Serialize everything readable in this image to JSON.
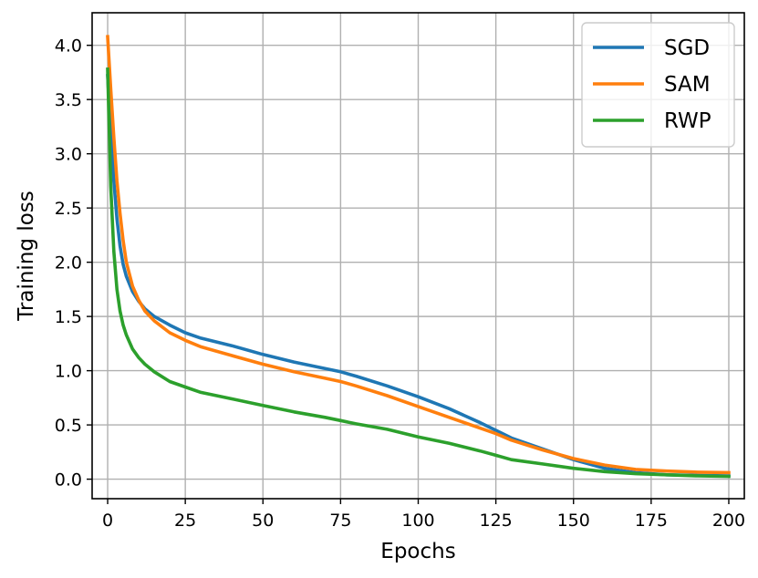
{
  "chart_data": {
    "type": "line",
    "title": "",
    "xlabel": "Epochs",
    "ylabel": "Training loss",
    "xlim": [
      -5,
      205
    ],
    "ylim": [
      -0.18,
      4.3
    ],
    "xticks": [
      0,
      25,
      50,
      75,
      100,
      125,
      150,
      175,
      200
    ],
    "xtick_labels": [
      "0",
      "25",
      "50",
      "75",
      "100",
      "125",
      "150",
      "175",
      "200"
    ],
    "yticks": [
      0.0,
      0.5,
      1.0,
      1.5,
      2.0,
      2.5,
      3.0,
      3.5,
      4.0
    ],
    "ytick_labels": [
      "0.0",
      "0.5",
      "1.0",
      "1.5",
      "2.0",
      "2.5",
      "3.0",
      "3.5",
      "4.0"
    ],
    "grid": true,
    "legend_position": "top-right",
    "series": [
      {
        "name": "SGD",
        "color": "#1f77b4",
        "x": [
          0,
          1,
          2,
          3,
          4,
          5,
          6,
          8,
          10,
          12,
          15,
          20,
          25,
          30,
          40,
          50,
          60,
          70,
          75,
          80,
          90,
          100,
          110,
          120,
          125,
          130,
          140,
          150,
          160,
          170,
          180,
          190,
          200
        ],
        "y": [
          3.72,
          3.2,
          2.75,
          2.4,
          2.15,
          1.98,
          1.87,
          1.73,
          1.64,
          1.57,
          1.5,
          1.42,
          1.35,
          1.3,
          1.23,
          1.15,
          1.08,
          1.02,
          0.99,
          0.95,
          0.86,
          0.76,
          0.65,
          0.52,
          0.45,
          0.38,
          0.28,
          0.18,
          0.1,
          0.06,
          0.04,
          0.035,
          0.03
        ]
      },
      {
        "name": "SAM",
        "color": "#ff7f0e",
        "x": [
          0,
          1,
          2,
          3,
          4,
          5,
          6,
          8,
          10,
          12,
          15,
          20,
          25,
          30,
          40,
          50,
          60,
          70,
          75,
          80,
          90,
          100,
          110,
          120,
          125,
          130,
          140,
          150,
          160,
          170,
          180,
          190,
          200
        ],
        "y": [
          4.08,
          3.6,
          3.15,
          2.75,
          2.45,
          2.2,
          2.0,
          1.78,
          1.65,
          1.55,
          1.46,
          1.35,
          1.28,
          1.22,
          1.14,
          1.06,
          0.99,
          0.93,
          0.9,
          0.86,
          0.77,
          0.67,
          0.57,
          0.47,
          0.42,
          0.36,
          0.27,
          0.19,
          0.13,
          0.09,
          0.075,
          0.065,
          0.06
        ]
      },
      {
        "name": "RWP",
        "color": "#2ca02c",
        "x": [
          0,
          1,
          2,
          3,
          4,
          5,
          6,
          8,
          10,
          12,
          15,
          20,
          25,
          30,
          40,
          50,
          60,
          70,
          75,
          80,
          90,
          100,
          110,
          120,
          125,
          130,
          140,
          150,
          160,
          170,
          180,
          190,
          200
        ],
        "y": [
          3.78,
          2.7,
          2.1,
          1.75,
          1.55,
          1.42,
          1.33,
          1.2,
          1.12,
          1.06,
          0.99,
          0.9,
          0.85,
          0.8,
          0.74,
          0.68,
          0.62,
          0.57,
          0.54,
          0.51,
          0.46,
          0.39,
          0.33,
          0.26,
          0.22,
          0.18,
          0.14,
          0.1,
          0.07,
          0.05,
          0.04,
          0.03,
          0.025
        ]
      }
    ]
  }
}
